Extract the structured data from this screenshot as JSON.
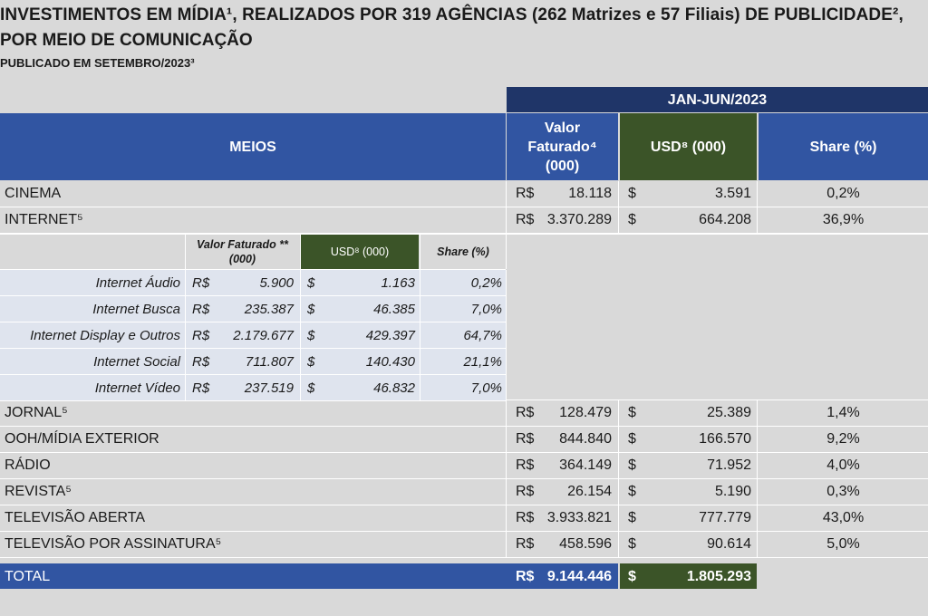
{
  "title": {
    "line1": "INVESTIMENTOS EM MÍDIA¹, REALIZADOS POR 319 AGÊNCIAS (262 Matrizes e 57 Filiais) DE PUBLICIDADE²,",
    "line2": "POR MEIO DE COMUNICAÇÃO",
    "line3": "PUBLICADO EM SETEMBRO/2023³"
  },
  "header": {
    "period": "JAN-JUN/2023",
    "meios": "MEIOS",
    "valor_line1": "Valor",
    "valor_line2": "Faturado⁴",
    "valor_line3": "(000)",
    "usd": "USD⁸ (000)",
    "share": "Share (%)"
  },
  "rows_top": [
    {
      "label": "CINEMA",
      "brl_symbol": "R$",
      "brl": "18.118",
      "usd_symbol": "$",
      "usd": "3.591",
      "share": "0,2%"
    },
    {
      "label": "INTERNET⁵",
      "brl_symbol": "R$",
      "brl": "3.370.289",
      "usd_symbol": "$",
      "usd": "664.208",
      "share": "36,9%"
    }
  ],
  "internet_breakdown": {
    "header": {
      "valor": "Valor Faturado **",
      "valor_unit": "(000)",
      "usd": "USD⁸ (000)",
      "share": "Share (%)"
    },
    "rows": [
      {
        "label": "Internet Áudio",
        "brl_symbol": "R$",
        "brl": "5.900",
        "usd_symbol": "$",
        "usd": "1.163",
        "share": "0,2%"
      },
      {
        "label": "Internet Busca",
        "brl_symbol": "R$",
        "brl": "235.387",
        "usd_symbol": "$",
        "usd": "46.385",
        "share": "7,0%"
      },
      {
        "label": "Internet Display e Outros",
        "brl_symbol": "R$",
        "brl": "2.179.677",
        "usd_symbol": "$",
        "usd": "429.397",
        "share": "64,7%"
      },
      {
        "label": "Internet Social",
        "brl_symbol": "R$",
        "brl": "711.807",
        "usd_symbol": "$",
        "usd": "140.430",
        "share": "21,1%"
      },
      {
        "label": "Internet Vídeo",
        "brl_symbol": "R$",
        "brl": "237.519",
        "usd_symbol": "$",
        "usd": "46.832",
        "share": "7,0%"
      }
    ]
  },
  "rows_bottom": [
    {
      "label": "JORNAL⁵",
      "brl_symbol": "R$",
      "brl": "128.479",
      "usd_symbol": "$",
      "usd": "25.389",
      "share": "1,4%"
    },
    {
      "label": "OOH/MÍDIA EXTERIOR",
      "brl_symbol": "R$",
      "brl": "844.840",
      "usd_symbol": "$",
      "usd": "166.570",
      "share": "9,2%"
    },
    {
      "label": "RÁDIO",
      "brl_symbol": "R$",
      "brl": "364.149",
      "usd_symbol": "$",
      "usd": "71.952",
      "share": "4,0%"
    },
    {
      "label": "REVISTA⁵",
      "brl_symbol": "R$",
      "brl": "26.154",
      "usd_symbol": "$",
      "usd": "5.190",
      "share": "0,3%"
    },
    {
      "label": "TELEVISÃO ABERTA",
      "brl_symbol": "R$",
      "brl": "3.933.821",
      "usd_symbol": "$",
      "usd": "777.779",
      "share": "43,0%"
    },
    {
      "label": "TELEVISÃO POR ASSINATURA⁵",
      "brl_symbol": "R$",
      "brl": "458.596",
      "usd_symbol": "$",
      "usd": "90.614",
      "share": "5,0%"
    }
  ],
  "total": {
    "label": "TOTAL",
    "brl_symbol": "R$",
    "brl": "9.144.446",
    "usd_symbol": "$",
    "usd": "1.805.293"
  },
  "colors": {
    "navy": "#1f3568",
    "blue": "#3155a2",
    "green": "#3b5428",
    "background": "#d9d9d9",
    "sub_table_bg": "#dfe4ee"
  }
}
